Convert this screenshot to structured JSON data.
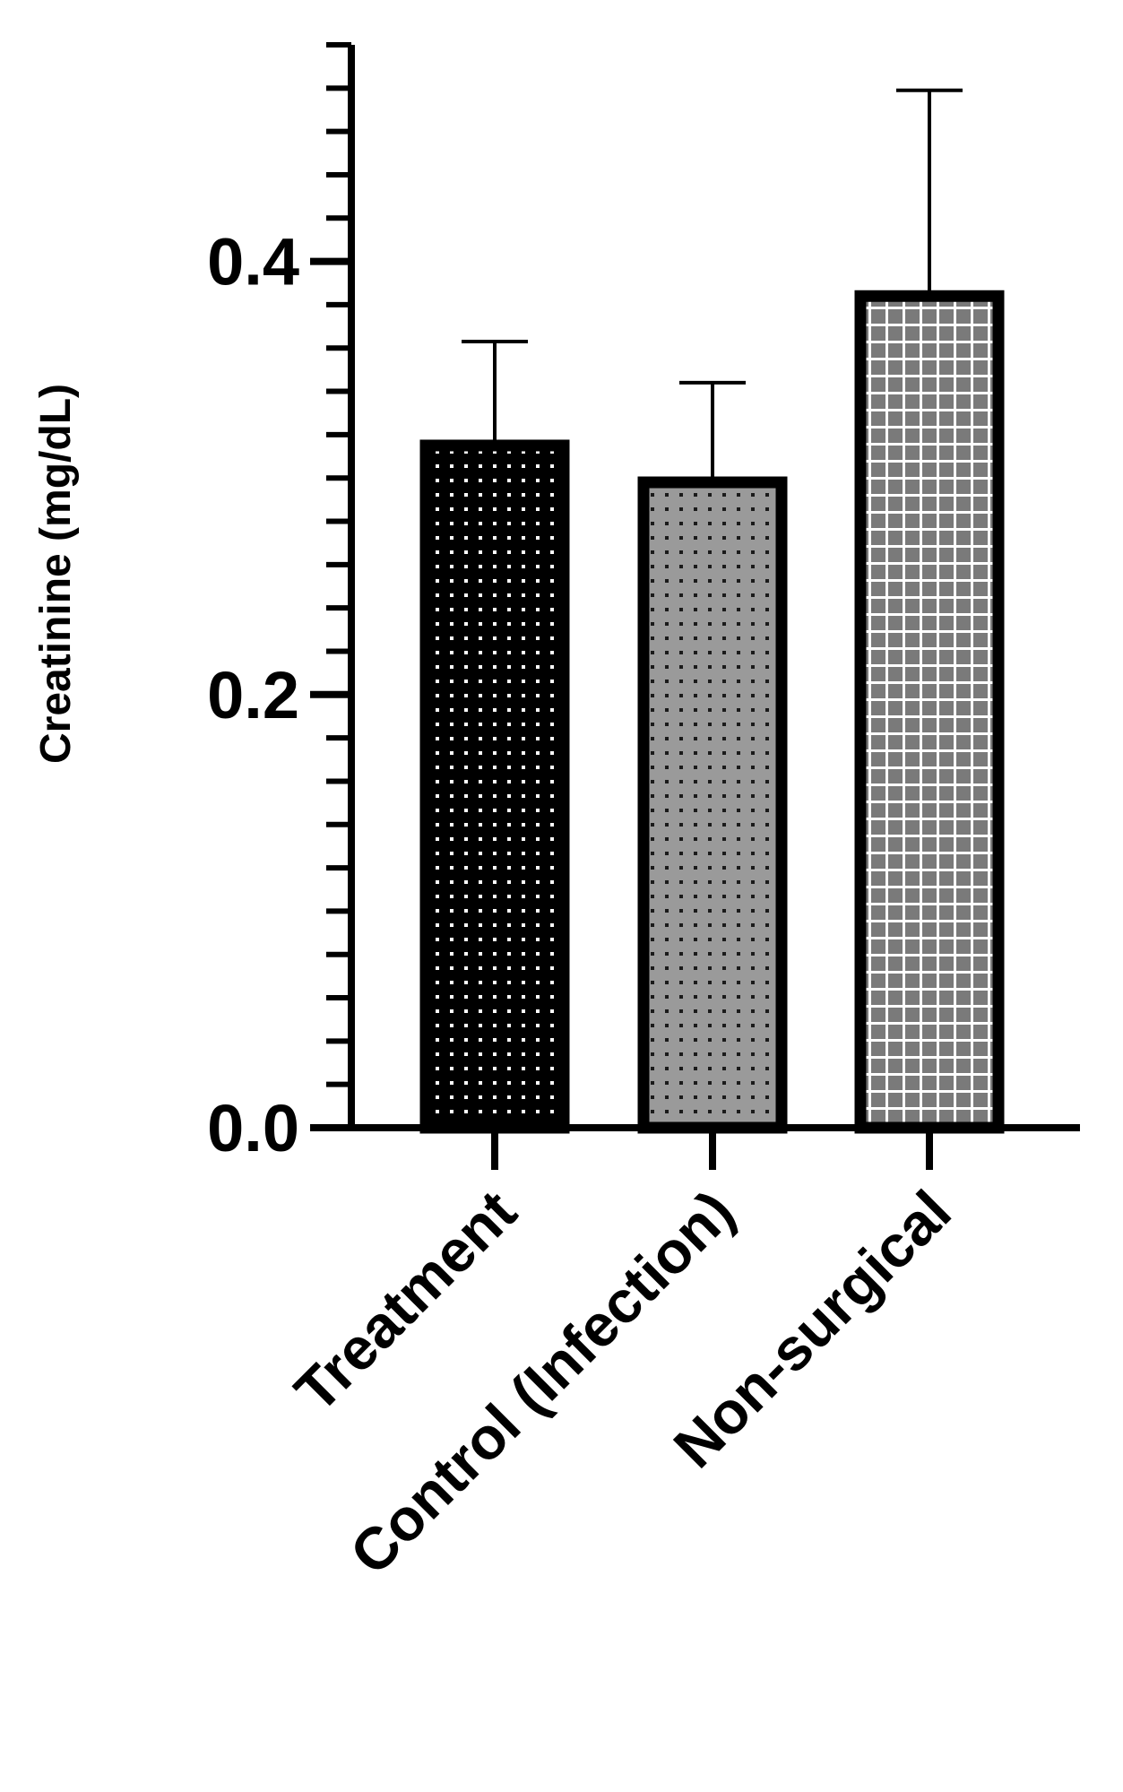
{
  "chart_data": {
    "type": "bar",
    "categories": [
      "Treatment",
      "Control (Infection)",
      "Non-surgical"
    ],
    "values": [
      0.315,
      0.298,
      0.384
    ],
    "error_upper": [
      0.363,
      0.344,
      0.479
    ],
    "ylabel": "Creatinine (mg/dL)",
    "xlabel": "",
    "ylim": [
      0,
      0.5
    ],
    "y_ticks": [
      {
        "value": 0.0,
        "label": "0.0"
      },
      {
        "value": 0.2,
        "label": "0.2"
      },
      {
        "value": 0.4,
        "label": "0.4"
      }
    ],
    "y_minor_step": 0.02,
    "bar_colors": [
      "#000000",
      "#9a9a9a",
      "#7a7a7a"
    ],
    "bar_patterns": [
      "white-dots",
      "dark-dots",
      "white-grid"
    ],
    "grid": false,
    "legend": "none"
  }
}
